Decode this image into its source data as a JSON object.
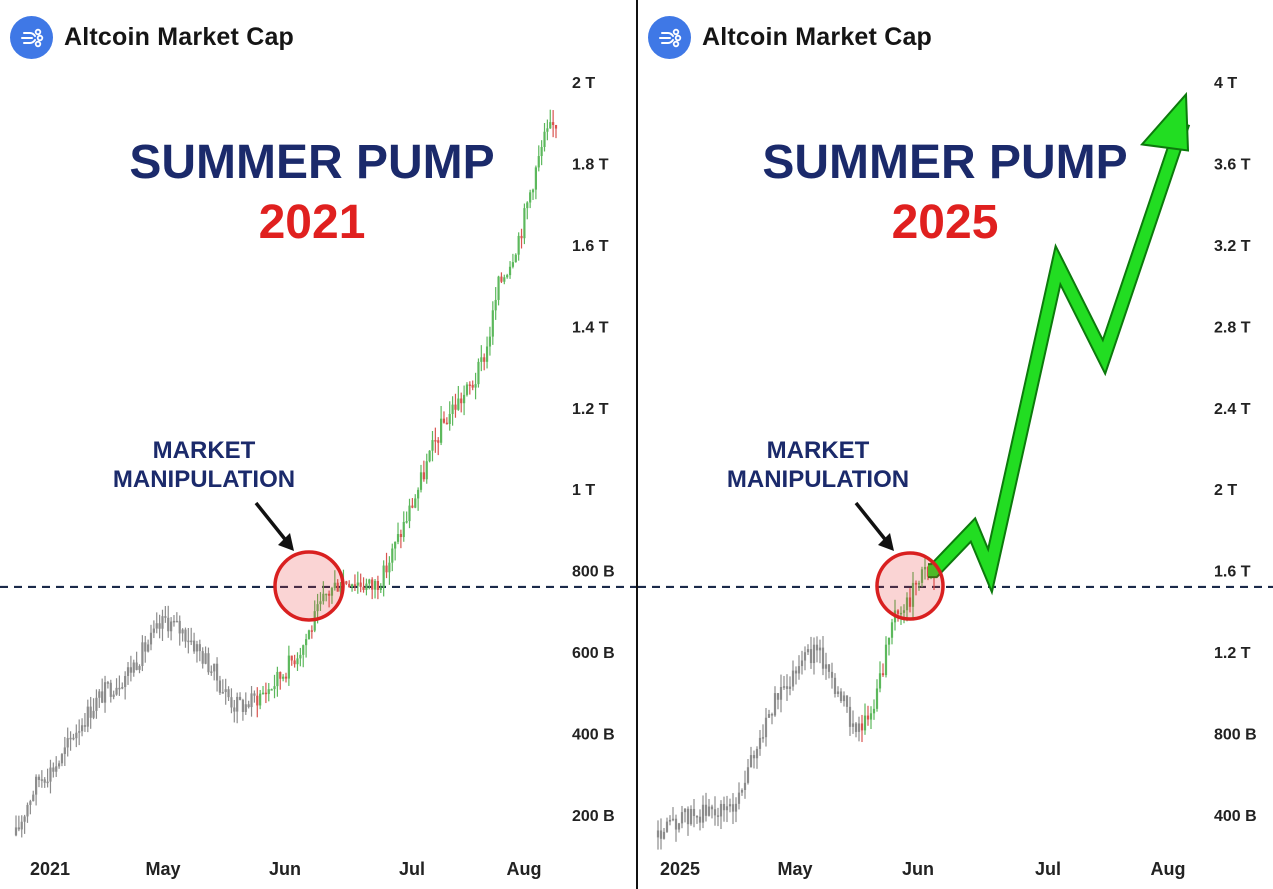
{
  "panels": [
    {
      "brand": "Altcoin Market Cap",
      "title_line1": "SUMMER PUMP",
      "title_line2": "2021",
      "annotation": [
        "MARKET",
        "MANIPULATION"
      ]
    },
    {
      "brand": "Altcoin Market Cap",
      "title_line1": "SUMMER PUMP",
      "title_line2": "2025",
      "annotation": [
        "MARKET",
        "MANIPULATION"
      ]
    }
  ],
  "colors": {
    "title_blue": "#1b2a6b",
    "title_red": "#e0201f",
    "candle_gray": "#8c8c8c",
    "candle_up": "#5cb85c",
    "candle_down": "#d9534f",
    "circle": "#d92020",
    "arrow_green": "#22dd22",
    "dashed_line": "#1b2a4a",
    "brand_logo": "#3f78e6"
  },
  "chart_data": [
    {
      "type": "candlestick",
      "title": "SUMMER PUMP 2021",
      "brand": "Altcoin Market Cap",
      "x_labels": [
        "2021",
        "May",
        "Jun",
        "Jul",
        "Aug"
      ],
      "y_labels": [
        "200 B",
        "400 B",
        "600 B",
        "800 B",
        "1 T",
        "1.2 T",
        "1.4 T",
        "1.6 T",
        "1.8 T",
        "2 T"
      ],
      "ylim_billion": [
        120,
        2020
      ],
      "reference_line_billion": 760,
      "annotation": "MARKET MANIPULATION",
      "series_close_billion": [
        150,
        230,
        290,
        310,
        340,
        400,
        440,
        480,
        510,
        530,
        560,
        600,
        640,
        680,
        660,
        640,
        600,
        560,
        510,
        470,
        470,
        490,
        510,
        540,
        580,
        620,
        680,
        740,
        770,
        780,
        770,
        760,
        790,
        860,
        930,
        1000,
        1080,
        1150,
        1200,
        1230,
        1270,
        1350,
        1500,
        1560,
        1640,
        1760,
        1860,
        1900
      ]
    },
    {
      "type": "candlestick",
      "title": "SUMMER PUMP 2025",
      "brand": "Altcoin Market Cap",
      "x_labels": [
        "2025",
        "May",
        "Jun",
        "Jul",
        "Aug"
      ],
      "y_labels": [
        "400 B",
        "800 B",
        "1.2 T",
        "1.6 T",
        "2 T",
        "2.4 T",
        "2.8 T",
        "3.2 T",
        "3.6 T",
        "4 T"
      ],
      "ylim_billion": [
        240,
        4040
      ],
      "reference_line_billion": 1520,
      "annotation": "MARKET MANIPULATION",
      "series_close_billion": [
        290,
        340,
        380,
        400,
        410,
        420,
        430,
        520,
        700,
        860,
        980,
        1080,
        1180,
        1200,
        1150,
        1000,
        880,
        820,
        920,
        1200,
        1420,
        1460,
        1620,
        1560
      ],
      "projection_billion": [
        1600,
        1800,
        1600,
        3100,
        2650,
        3800
      ]
    }
  ]
}
